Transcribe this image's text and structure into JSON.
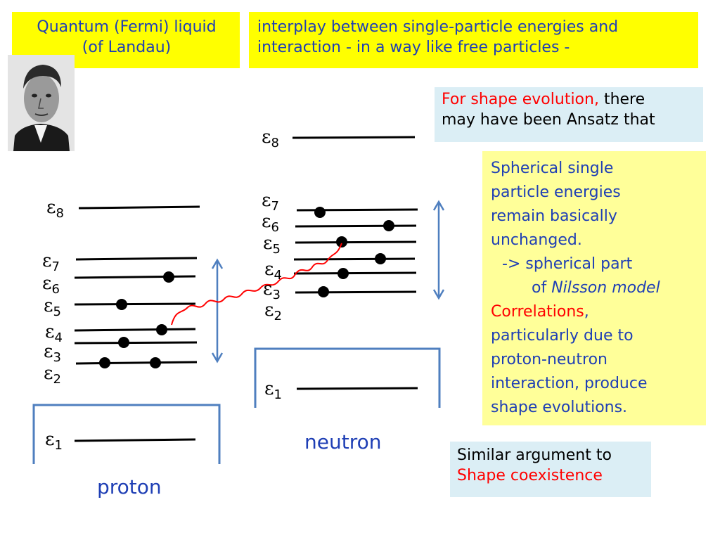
{
  "title": {
    "line1": "Quantum (Fermi) liquid",
    "line2": "(of Landau)"
  },
  "intro": {
    "line1": "interplay between single-particle energies and",
    "line2": "interaction - in a way like free particles -"
  },
  "shape_box": {
    "red": "For shape evolution,",
    "rest_line1": " there",
    "line2": "may have been Ansatz that"
  },
  "spherical_box": {
    "l1": "Spherical single",
    "l2": "particle energies",
    "l3": "remain basically",
    "l4": "unchanged.",
    "l5": "-> spherical part",
    "l6_prefix": "of ",
    "l6_italic": "Nilsson model",
    "l7_red": "Correlations",
    "l7_rest": ",",
    "l8": "particularly due to",
    "l9": "proton-neutron",
    "l10": "interaction, produce",
    "l11": "shape evolutions."
  },
  "similar_box": {
    "line1": "Similar argument to",
    "line2_red": "Shape coexistence"
  },
  "proton": {
    "label": "proton",
    "levels": [
      {
        "sym": "ε",
        "sub": "8"
      },
      {
        "sym": "ε",
        "sub": "7"
      },
      {
        "sym": "ε",
        "sub": "6"
      },
      {
        "sym": "ε",
        "sub": "5"
      },
      {
        "sym": "ε",
        "sub": "4"
      },
      {
        "sym": "ε",
        "sub": "3"
      },
      {
        "sym": "ε",
        "sub": "2"
      },
      {
        "sym": "ε",
        "sub": "1"
      }
    ]
  },
  "neutron": {
    "label": "neutron",
    "levels": [
      {
        "sym": "ε",
        "sub": "8"
      },
      {
        "sym": "ε",
        "sub": "7"
      },
      {
        "sym": "ε",
        "sub": "6"
      },
      {
        "sym": "ε",
        "sub": "5"
      },
      {
        "sym": "ε",
        "sub": "4"
      },
      {
        "sym": "ε",
        "sub": "3"
      },
      {
        "sym": "ε",
        "sub": "2"
      },
      {
        "sym": "ε",
        "sub": "1"
      }
    ]
  },
  "colors": {
    "yellow": "#ffff00",
    "light_yellow": "#ffff99",
    "light_blue_box": "#dbeef5",
    "text_blue": "#1f3fb5",
    "red": "#ff0000",
    "bracket_blue": "#4f7fbf"
  }
}
